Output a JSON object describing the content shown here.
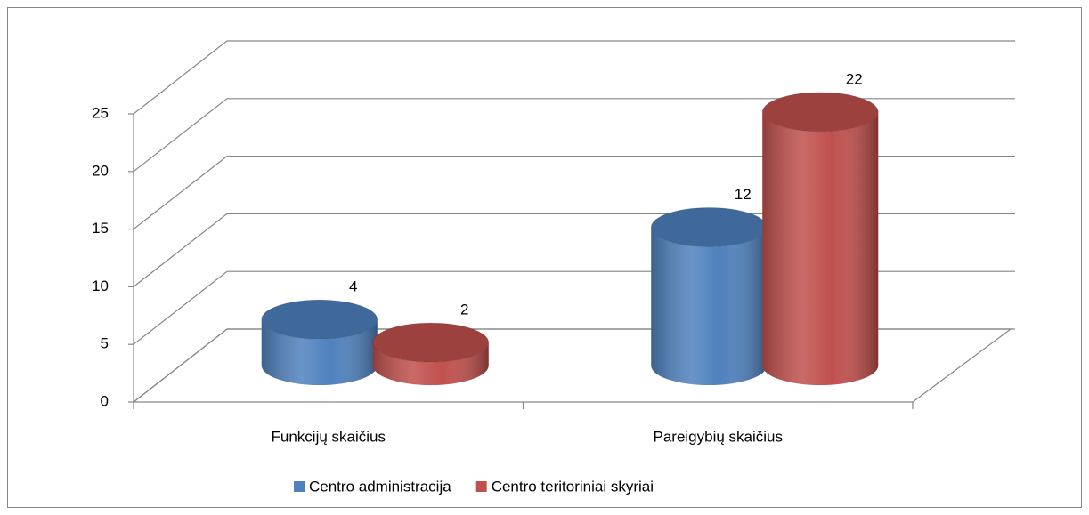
{
  "chart_data": {
    "type": "bar3d_cylinder",
    "categories": [
      "Funkcijų skaičius",
      "Pareigybių skaičius"
    ],
    "series": [
      {
        "name": "Centro administracija",
        "color": "#4f81bd",
        "values": [
          4,
          12
        ]
      },
      {
        "name": "Centro teritoriniai skyriai",
        "color": "#c0504d",
        "values": [
          2,
          22
        ]
      }
    ],
    "ylim": [
      0,
      25
    ],
    "yticks": [
      0,
      5,
      10,
      15,
      20,
      25
    ],
    "grid": true,
    "legend": "bottom",
    "data_labels": true
  }
}
